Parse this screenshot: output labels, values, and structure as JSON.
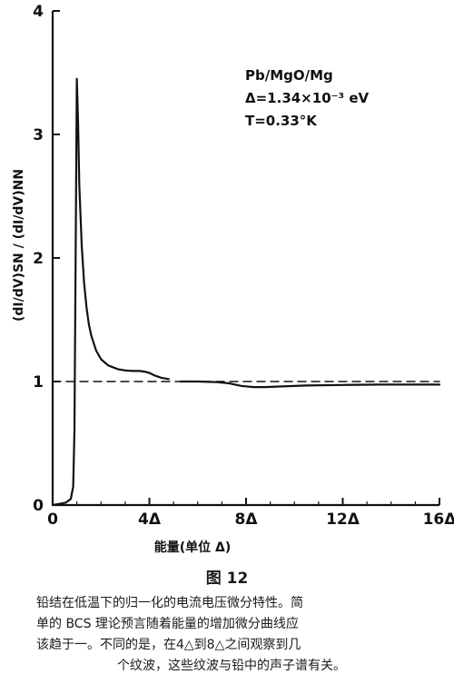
{
  "chart_data": {
    "type": "line",
    "xlabel": "能量(单位 Δ)",
    "ylabel": "(dI/dV)SN / (dI/dV)NN",
    "x_ticks": [
      "0",
      "4Δ",
      "8Δ",
      "12Δ",
      "16Δ"
    ],
    "y_ticks": [
      "0",
      "1",
      "2",
      "3",
      "4"
    ],
    "xlim": [
      0,
      16
    ],
    "ylim": [
      0,
      4
    ],
    "annotations": [
      "Pb/MgO/Mg",
      "Δ=1.34×10⁻³ eV",
      "T=0.33°K"
    ],
    "series": [
      {
        "name": "",
        "style": "solid",
        "x": [
          0,
          0.3,
          0.55,
          0.75,
          0.85,
          0.9,
          0.95,
          1.0,
          1.05,
          1.1,
          1.2,
          1.3,
          1.4,
          1.5,
          1.6,
          1.8,
          2.0,
          2.3,
          2.7,
          3.0,
          3.3,
          3.6,
          3.8,
          4.0,
          4.2,
          4.5,
          4.8
        ],
        "y": [
          0,
          0.01,
          0.02,
          0.05,
          0.15,
          0.6,
          2.0,
          3.45,
          3.1,
          2.6,
          2.1,
          1.8,
          1.6,
          1.46,
          1.37,
          1.25,
          1.18,
          1.13,
          1.1,
          1.09,
          1.085,
          1.085,
          1.08,
          1.07,
          1.05,
          1.03,
          1.02
        ]
      },
      {
        "name": "",
        "style": "solid",
        "x": [
          5.3,
          6.0,
          6.8,
          7.3,
          7.8,
          8.3,
          8.8,
          9.5,
          10.5,
          12.0,
          13.5,
          15.0,
          16.0
        ],
        "y": [
          1.0,
          1.0,
          0.995,
          0.985,
          0.965,
          0.955,
          0.955,
          0.96,
          0.968,
          0.972,
          0.975,
          0.975,
          0.975
        ]
      },
      {
        "name": "",
        "style": "dashed",
        "x": [
          0,
          16
        ],
        "y": [
          1.0,
          1.0
        ]
      }
    ]
  },
  "figure_label": "图 12",
  "caption_lines": [
    "铅结在低温下的归一化的电流电压微分特性。简",
    "单的 BCS 理论预言随着能量的增加微分曲线应",
    "该趋于一。不同的是，在4△到8△之间观察到几",
    "个纹波，这些纹波与铅中的声子谱有关。"
  ]
}
